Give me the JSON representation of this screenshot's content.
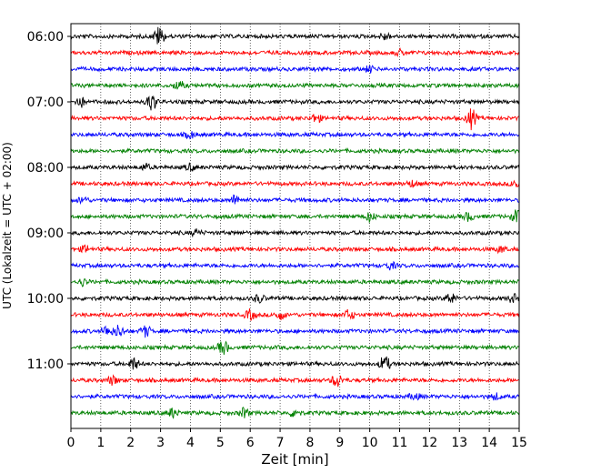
{
  "chart_data": {
    "type": "line",
    "title": "",
    "xlabel": "Zeit  [min]",
    "ylabel": "UTC (Lokalzeit = UTC + 02:00)",
    "xlim": [
      0,
      15
    ],
    "x_ticks": [
      "0",
      "1",
      "2",
      "3",
      "4",
      "5",
      "6",
      "7",
      "8",
      "9",
      "10",
      "11",
      "12",
      "13",
      "14",
      "15"
    ],
    "y_tick_labels": [
      "06:00",
      "07:00",
      "08:00",
      "09:00",
      "10:00",
      "11:00"
    ],
    "trace_interval_minutes": 15,
    "start_time": "06:00",
    "grid": "vertical-dotted",
    "trace_colors": [
      "#000000",
      "#ff0000",
      "#0000ff",
      "#008000"
    ],
    "series": [
      {
        "label": "06:00",
        "color": "#000000",
        "events": [
          [
            2.95,
            1.0
          ],
          [
            10.5,
            0.35
          ]
        ]
      },
      {
        "label": "06:15",
        "color": "#ff0000",
        "events": [
          [
            11.0,
            0.25
          ]
        ]
      },
      {
        "label": "06:30",
        "color": "#0000ff",
        "events": [
          [
            10.0,
            0.3
          ]
        ]
      },
      {
        "label": "06:45",
        "color": "#008000",
        "events": [
          [
            3.6,
            0.45
          ]
        ]
      },
      {
        "label": "07:00",
        "color": "#000000",
        "events": [
          [
            0.3,
            0.55
          ],
          [
            2.7,
            0.9
          ]
        ]
      },
      {
        "label": "07:15",
        "color": "#ff0000",
        "events": [
          [
            8.2,
            0.45
          ],
          [
            13.4,
            1.0
          ]
        ]
      },
      {
        "label": "07:30",
        "color": "#0000ff",
        "events": [
          [
            4.0,
            0.35
          ]
        ]
      },
      {
        "label": "07:45",
        "color": "#008000",
        "events": []
      },
      {
        "label": "08:00",
        "color": "#000000",
        "events": [
          [
            2.5,
            0.3
          ],
          [
            4.0,
            0.3
          ]
        ]
      },
      {
        "label": "08:15",
        "color": "#ff0000",
        "events": [
          [
            11.4,
            0.3
          ],
          [
            14.9,
            0.4
          ]
        ]
      },
      {
        "label": "08:30",
        "color": "#0000ff",
        "events": [
          [
            0.4,
            0.35
          ],
          [
            5.5,
            0.5
          ]
        ]
      },
      {
        "label": "08:45",
        "color": "#008000",
        "events": [
          [
            10.0,
            0.45
          ],
          [
            13.3,
            0.4
          ],
          [
            14.9,
            0.6
          ]
        ]
      },
      {
        "label": "09:00",
        "color": "#000000",
        "events": [
          [
            4.2,
            0.3
          ]
        ]
      },
      {
        "label": "09:15",
        "color": "#ff0000",
        "events": [
          [
            0.5,
            0.35
          ],
          [
            14.4,
            0.3
          ]
        ]
      },
      {
        "label": "09:30",
        "color": "#0000ff",
        "events": [
          [
            10.7,
            0.35
          ]
        ]
      },
      {
        "label": "09:45",
        "color": "#008000",
        "events": [
          [
            0.4,
            0.35
          ]
        ]
      },
      {
        "label": "10:00",
        "color": "#000000",
        "events": [
          [
            6.3,
            0.4
          ],
          [
            12.7,
            0.55
          ],
          [
            14.8,
            0.4
          ]
        ]
      },
      {
        "label": "10:15",
        "color": "#ff0000",
        "events": [
          [
            6.0,
            0.5
          ],
          [
            7.0,
            0.45
          ],
          [
            9.3,
            0.5
          ]
        ]
      },
      {
        "label": "10:30",
        "color": "#0000ff",
        "events": [
          [
            1.2,
            0.5
          ],
          [
            1.6,
            0.6
          ],
          [
            2.5,
            0.55
          ]
        ]
      },
      {
        "label": "10:45",
        "color": "#008000",
        "events": [
          [
            5.1,
            0.7
          ]
        ]
      },
      {
        "label": "11:00",
        "color": "#000000",
        "events": [
          [
            2.1,
            0.6
          ],
          [
            10.5,
            0.85
          ]
        ]
      },
      {
        "label": "11:15",
        "color": "#ff0000",
        "events": [
          [
            1.4,
            0.45
          ],
          [
            8.9,
            0.7
          ]
        ]
      },
      {
        "label": "11:30",
        "color": "#0000ff",
        "events": [
          [
            11.5,
            0.3
          ],
          [
            14.2,
            0.3
          ]
        ]
      },
      {
        "label": "11:45",
        "color": "#008000",
        "events": [
          [
            3.4,
            0.45
          ],
          [
            5.8,
            0.5
          ],
          [
            7.5,
            0.45
          ]
        ]
      }
    ]
  }
}
